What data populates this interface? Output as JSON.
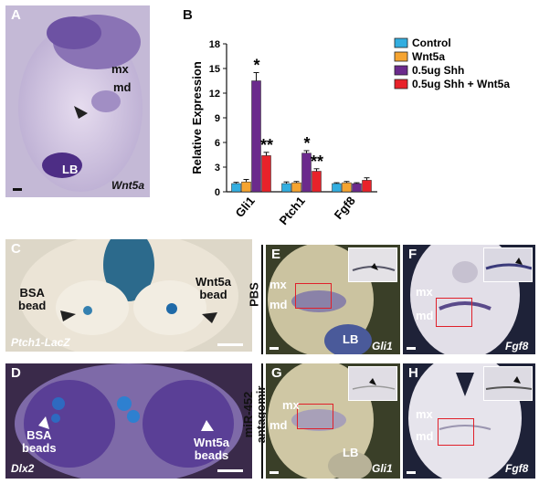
{
  "panels": {
    "A": {
      "letter": "A",
      "mx": "mx",
      "md": "md",
      "lb": "LB",
      "gene": "Wnt5a"
    },
    "B": {
      "letter": "B"
    },
    "C": {
      "letter": "C",
      "bsa": "BSA\nbead",
      "wnt": "Wnt5a\nbead",
      "gene": "Ptch1-LacZ"
    },
    "D": {
      "letter": "D",
      "bsa": "BSA\nbeads",
      "wnt": "Wnt5a\nbeads",
      "gene": "Dlx2"
    },
    "E": {
      "letter": "E",
      "mx": "mx",
      "md": "md",
      "lb": "LB",
      "gene": "Gli1"
    },
    "F": {
      "letter": "F",
      "mx": "mx",
      "md": "md",
      "gene": "Fgf8"
    },
    "G": {
      "letter": "G",
      "mx": "mx",
      "md": "md",
      "lb": "LB",
      "gene": "Gli1"
    },
    "H": {
      "letter": "H",
      "mx": "mx",
      "md": "md",
      "gene": "Fgf8"
    }
  },
  "row_labels": {
    "pbs": "PBS",
    "antagomir": "miR-452\nantagomir"
  },
  "chart_data": {
    "type": "bar",
    "ylabel": "Relative Expression",
    "ylim": [
      0,
      18
    ],
    "yticks": [
      0,
      3,
      6,
      9,
      12,
      15,
      18
    ],
    "categories": [
      "Gli1",
      "Ptch1",
      "Fgf8"
    ],
    "series": [
      {
        "name": "Control",
        "color": "#33aee0",
        "values": [
          1.0,
          1.0,
          1.0
        ],
        "errors": [
          0.15,
          0.2,
          0.1
        ],
        "marks": [
          "",
          "",
          ""
        ]
      },
      {
        "name": "Wnt5a",
        "color": "#f5a431",
        "values": [
          1.2,
          1.1,
          1.1
        ],
        "errors": [
          0.3,
          0.15,
          0.15
        ],
        "marks": [
          "",
          "",
          ""
        ]
      },
      {
        "name": "0.5ug Shh",
        "color": "#6b2a8c",
        "values": [
          13.5,
          4.7,
          1.0
        ],
        "errors": [
          1.0,
          0.3,
          0.1
        ],
        "marks": [
          "*",
          "*",
          ""
        ]
      },
      {
        "name": "0.5ug Shh + Wnt5a",
        "color": "#e8222a",
        "values": [
          4.4,
          2.5,
          1.4
        ],
        "errors": [
          0.4,
          0.3,
          0.3
        ],
        "marks": [
          "**",
          "**",
          ""
        ]
      }
    ]
  }
}
